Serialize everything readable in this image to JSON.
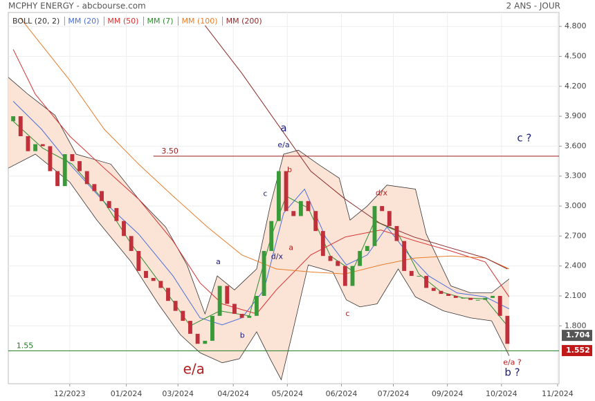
{
  "chart_data": {
    "type": "candlestick",
    "title": "MCPHY ENERGY - abcbourse.com",
    "period": "2 ANS - JOUR",
    "xlim": [
      0,
      224
    ],
    "ylim": [
      1.22,
      4.94
    ],
    "grid": true,
    "xticks": [
      {
        "value": 25,
        "label": "12/2023"
      },
      {
        "value": 48,
        "label": "01/2024"
      },
      {
        "value": 69,
        "label": "03/2024"
      },
      {
        "value": 91.5,
        "label": "04/2024"
      },
      {
        "value": 113.5,
        "label": "05/2024"
      },
      {
        "value": 135.5,
        "label": "06/2024"
      },
      {
        "value": 156.6,
        "label": "07/2024"
      },
      {
        "value": 178.6,
        "label": "09/2024"
      },
      {
        "value": 200.6,
        "label": "10/2024"
      },
      {
        "value": 223.4,
        "label": "11/2024"
      }
    ],
    "yticks": [
      {
        "value": 4.8,
        "label": "4.800"
      },
      {
        "value": 4.5,
        "label": "4.500"
      },
      {
        "value": 4.2,
        "label": "4.200"
      },
      {
        "value": 3.9,
        "label": "3.900"
      },
      {
        "value": 3.6,
        "label": "3.600"
      },
      {
        "value": 3.3,
        "label": "3.300"
      },
      {
        "value": 3,
        "label": "3.000"
      },
      {
        "value": 2.7,
        "label": "2.700"
      },
      {
        "value": 2.4,
        "label": "2.400"
      },
      {
        "value": 2.1,
        "label": "2.100"
      },
      {
        "value": 1.8,
        "label": "1.800"
      }
    ],
    "up_color": "#3a9a3a",
    "down_color": "#c0303a",
    "candles": {
      "x": [
        2,
        5,
        8,
        11,
        14,
        17,
        20,
        23,
        26,
        29,
        32,
        35,
        38,
        41,
        44,
        47,
        50,
        53,
        56,
        59,
        62,
        65,
        68,
        71,
        74,
        77,
        80,
        83,
        86,
        89,
        92,
        95,
        98,
        101,
        104,
        107,
        110,
        113,
        116,
        119,
        122,
        125,
        128,
        131,
        134,
        137,
        140,
        143,
        146,
        149,
        152,
        155,
        158,
        161,
        164,
        167,
        170,
        173,
        176,
        179,
        182,
        185,
        188,
        191,
        194,
        197,
        200,
        203
      ],
      "open": [
        3.85,
        3.9,
        3.7,
        3.55,
        3.62,
        3.6,
        3.35,
        3.2,
        3.52,
        3.45,
        3.35,
        3.22,
        3.15,
        3.05,
        2.98,
        2.85,
        2.7,
        2.55,
        2.35,
        2.28,
        2.25,
        2.18,
        2.05,
        1.95,
        1.85,
        1.72,
        1.62,
        1.65,
        1.9,
        2.2,
        2.02,
        1.92,
        1.88,
        1.9,
        2.1,
        2.55,
        2.85,
        3.35,
        2.95,
        2.9,
        3.05,
        2.95,
        2.75,
        2.5,
        2.45,
        2.4,
        2.2,
        2.4,
        2.55,
        2.6,
        3.0,
        2.95,
        2.8,
        2.65,
        2.35,
        2.3,
        2.3,
        2.18,
        2.15,
        2.12,
        2.1,
        2.08,
        2.08,
        2.06,
        2.06,
        2.08,
        2.1,
        1.9
      ],
      "close": [
        3.9,
        3.7,
        3.55,
        3.62,
        3.6,
        3.35,
        3.2,
        3.52,
        3.45,
        3.35,
        3.22,
        3.15,
        3.05,
        2.98,
        2.85,
        2.7,
        2.55,
        2.35,
        2.28,
        2.25,
        2.18,
        2.05,
        1.95,
        1.85,
        1.72,
        1.62,
        1.65,
        1.9,
        2.2,
        2.02,
        1.92,
        1.88,
        1.9,
        2.1,
        2.55,
        2.85,
        3.35,
        2.95,
        2.9,
        3.05,
        2.95,
        2.75,
        2.5,
        2.45,
        2.4,
        2.2,
        2.4,
        2.55,
        2.6,
        3.0,
        2.95,
        2.8,
        2.65,
        2.35,
        2.3,
        2.3,
        2.18,
        2.15,
        2.12,
        2.1,
        2.08,
        2.08,
        2.06,
        2.06,
        2.08,
        2.1,
        1.9,
        1.62
      ]
    },
    "bollinger": {
      "name": "BOLL (20, 2)",
      "color": "#333333",
      "fill": "#fbe3d6",
      "upper": {
        "x": [
          0,
          8,
          19,
          27.6,
          41.7,
          53,
          64,
          72.7,
          80,
          85,
          92,
          101,
          106.5,
          112,
          118,
          126,
          134.6,
          139,
          146,
          154,
          165.6,
          170,
          180,
          188,
          196.6,
          203.7
        ],
        "values": [
          4.29,
          4.12,
          3.91,
          3.52,
          3.42,
          3.07,
          2.79,
          2.41,
          1.92,
          2.3,
          2.16,
          2.37,
          3.0,
          3.52,
          3.56,
          3.42,
          3.28,
          2.86,
          3.0,
          3.21,
          3.17,
          2.72,
          2.2,
          2.13,
          2.13,
          2.27
        ]
      },
      "lower": {
        "x": [
          0,
          11,
          25,
          36,
          50,
          61,
          70,
          78,
          87,
          94,
          101,
          106.5,
          111,
          115,
          122,
          132,
          137.5,
          143,
          150,
          158.6,
          165.6,
          177,
          188,
          196.6,
          203.7
        ],
        "values": [
          3.38,
          3.52,
          3.24,
          2.86,
          2.44,
          2.02,
          1.71,
          1.53,
          1.43,
          1.47,
          1.74,
          1.47,
          1.26,
          1.67,
          2.41,
          2.34,
          2.06,
          1.99,
          2.02,
          2.37,
          2.09,
          1.95,
          1.88,
          1.85,
          1.5
        ]
      }
    },
    "series": [
      {
        "name": "MM (20)",
        "color": "#4a6fd8",
        "x": [
          2,
          13.5,
          25,
          39,
          53,
          67,
          78,
          87,
          95,
          104,
          112,
          120.5,
          129,
          137.5,
          146,
          154,
          163,
          171,
          182.5,
          194,
          203.7
        ],
        "values": [
          4.05,
          3.77,
          3.42,
          3.04,
          2.72,
          2.3,
          1.88,
          1.81,
          1.88,
          2.16,
          2.93,
          3.17,
          2.69,
          2.41,
          2.51,
          2.79,
          2.51,
          2.3,
          2.13,
          2.09,
          1.97
        ]
      },
      {
        "name": "MM (50)",
        "color": "#d83030",
        "x": [
          2,
          11,
          25,
          39,
          53,
          67,
          78,
          87,
          101,
          109,
          123,
          137,
          151.5,
          165.6,
          180,
          194,
          203.7
        ],
        "values": [
          4.57,
          4.12,
          3.7,
          3.38,
          3.07,
          2.65,
          2.23,
          2.02,
          1.92,
          2.16,
          2.51,
          2.69,
          2.76,
          2.65,
          2.55,
          2.44,
          2.09
        ]
      },
      {
        "name": "MM (7)",
        "color": "#2e8b2e",
        "x": [
          2,
          14,
          26,
          38,
          50,
          62,
          74,
          86,
          98,
          107,
          113,
          122,
          131,
          140,
          149,
          158,
          167,
          176,
          185,
          194,
          203
        ],
        "values": [
          3.85,
          3.58,
          3.42,
          3.08,
          2.62,
          2.22,
          1.8,
          1.95,
          1.9,
          2.7,
          3.1,
          2.98,
          2.5,
          2.35,
          2.85,
          2.75,
          2.32,
          2.14,
          2.08,
          2.07,
          1.8
        ]
      },
      {
        "name": "MM (100)",
        "color": "#e87d2a",
        "x": [
          5,
          25,
          39,
          53,
          67,
          81,
          95,
          109,
          123,
          137,
          151.5,
          165.6,
          180,
          194,
          203.7
        ],
        "values": [
          4.88,
          4.26,
          3.77,
          3.42,
          3.1,
          2.79,
          2.51,
          2.37,
          2.34,
          2.32,
          2.41,
          2.48,
          2.5,
          2.48,
          2.37
        ]
      },
      {
        "name": "MM (200)",
        "color": "#8b2a2a",
        "x": [
          80,
          95,
          109,
          123,
          137,
          151,
          165,
          180,
          194,
          203
        ],
        "values": [
          4.81,
          4.33,
          3.84,
          3.35,
          3.07,
          2.83,
          2.69,
          2.58,
          2.48,
          2.37
        ]
      }
    ],
    "reference_lines": [
      {
        "value": 3.5,
        "label": "3.50",
        "color": "#9b1c1c",
        "start_x": 59
      },
      {
        "value": 1.55,
        "label": "1.55",
        "color": "#1f7a1f",
        "start_x": 0
      }
    ],
    "last_values": [
      {
        "value": 1.704,
        "color": "#555555"
      },
      {
        "value": 1.552,
        "color": "#c01818"
      }
    ],
    "annotations": [
      {
        "text": "a",
        "x": 112,
        "y": 3.78,
        "color": "#1a1a7a",
        "style": "major"
      },
      {
        "text": "e/a",
        "x": 112,
        "y": 3.61,
        "color": "#1a1a7a",
        "style": "minor"
      },
      {
        "text": "b",
        "x": 114.4,
        "y": 3.36,
        "color": "#b02020",
        "style": "minor"
      },
      {
        "text": "c ?",
        "x": 209.9,
        "y": 3.68,
        "color": "#1a1a7a",
        "style": "major"
      },
      {
        "text": "a",
        "x": 85.4,
        "y": 2.44,
        "color": "#1a1a7a",
        "style": "minor"
      },
      {
        "text": "c",
        "x": 104.5,
        "y": 3.12,
        "color": "#1a1a7a",
        "style": "minor"
      },
      {
        "text": "d/x",
        "x": 109.3,
        "y": 2.49,
        "color": "#1a1a7a",
        "style": "minor"
      },
      {
        "text": "a",
        "x": 115,
        "y": 2.58,
        "color": "#b02020",
        "style": "minor"
      },
      {
        "text": "b",
        "x": 95.2,
        "y": 1.7,
        "color": "#1a1a7a",
        "style": "minor"
      },
      {
        "text": "c",
        "x": 138,
        "y": 1.92,
        "color": "#b02020",
        "style": "minor"
      },
      {
        "text": "d/x",
        "x": 151.8,
        "y": 3.13,
        "color": "#b02020",
        "style": "minor"
      },
      {
        "text": "e/a",
        "x": 75.5,
        "y": 1.36,
        "color": "#b02020",
        "style": "huge"
      },
      {
        "text": "e/a ?",
        "x": 205,
        "y": 1.43,
        "color": "#b02020",
        "style": "minor"
      },
      {
        "text": "b ?",
        "x": 205,
        "y": 1.33,
        "color": "#1a1a7a",
        "style": "major"
      }
    ]
  }
}
